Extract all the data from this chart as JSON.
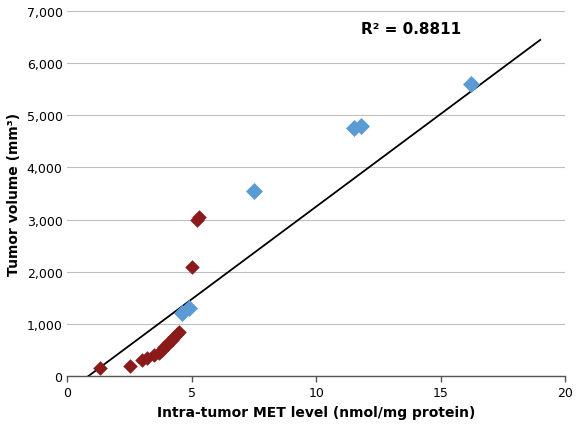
{
  "red_points": [
    [
      1.3,
      150
    ],
    [
      2.5,
      200
    ],
    [
      3.0,
      300
    ],
    [
      3.2,
      350
    ],
    [
      3.5,
      400
    ],
    [
      3.7,
      450
    ],
    [
      3.8,
      500
    ],
    [
      3.9,
      550
    ],
    [
      4.0,
      600
    ],
    [
      4.1,
      650
    ],
    [
      4.2,
      700
    ],
    [
      4.3,
      750
    ],
    [
      4.4,
      800
    ],
    [
      4.5,
      850
    ],
    [
      5.0,
      2100
    ],
    [
      5.2,
      3000
    ],
    [
      5.3,
      3050
    ]
  ],
  "blue_points": [
    [
      4.6,
      1200
    ],
    [
      4.9,
      1300
    ],
    [
      7.5,
      3550
    ],
    [
      11.5,
      4750
    ],
    [
      11.8,
      4800
    ],
    [
      16.2,
      5600
    ]
  ],
  "trendline": {
    "x_start": 0.0,
    "x_end": 19.0,
    "slope": 355.0,
    "intercept": -300.0
  },
  "r2_text": "R² = 0.8811",
  "r2_x": 11.8,
  "r2_y": 6800,
  "xlabel": "Intra-tumor MET level (nmol/mg protein)",
  "ylabel": "Tumor volume (mm³)",
  "xlim": [
    0,
    20
  ],
  "ylim": [
    0,
    7000
  ],
  "xticks": [
    0,
    5,
    10,
    15,
    20
  ],
  "yticks": [
    0,
    1000,
    2000,
    3000,
    4000,
    5000,
    6000,
    7000
  ],
  "red_color": "#8B1A1A",
  "blue_color": "#5B9BD5",
  "background_color": "#ffffff",
  "grid_color": "#c0c0c0"
}
